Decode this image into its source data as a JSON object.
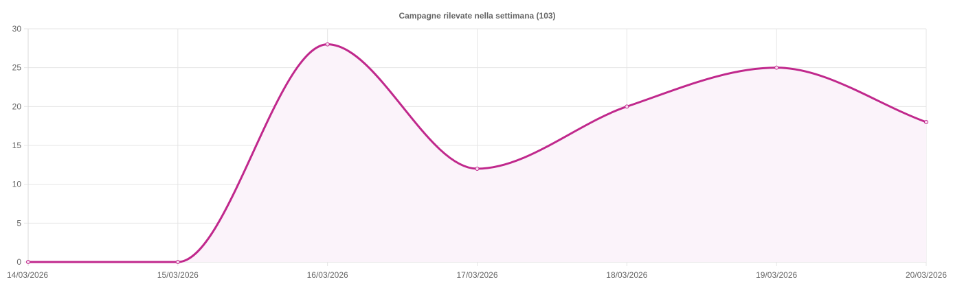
{
  "chart_data": {
    "type": "line",
    "title": "Campagne rilevate nella settimana (103)",
    "xlabel": "",
    "ylabel": "",
    "categories": [
      "14/03/2026",
      "15/03/2026",
      "16/03/2026",
      "17/03/2026",
      "18/03/2026",
      "19/03/2026",
      "20/03/2026"
    ],
    "series": [
      {
        "values": [
          0,
          0,
          28,
          12,
          20,
          25,
          18
        ]
      }
    ],
    "ylim": [
      0,
      30
    ],
    "yticks": [
      "0",
      "5",
      "10",
      "15",
      "20",
      "25",
      "30"
    ],
    "grid": true,
    "legend": "none",
    "fill": true,
    "colors": {
      "line": "#c0288c",
      "fill": "#fbf3fa",
      "point_fill": "#f7dcef"
    }
  }
}
